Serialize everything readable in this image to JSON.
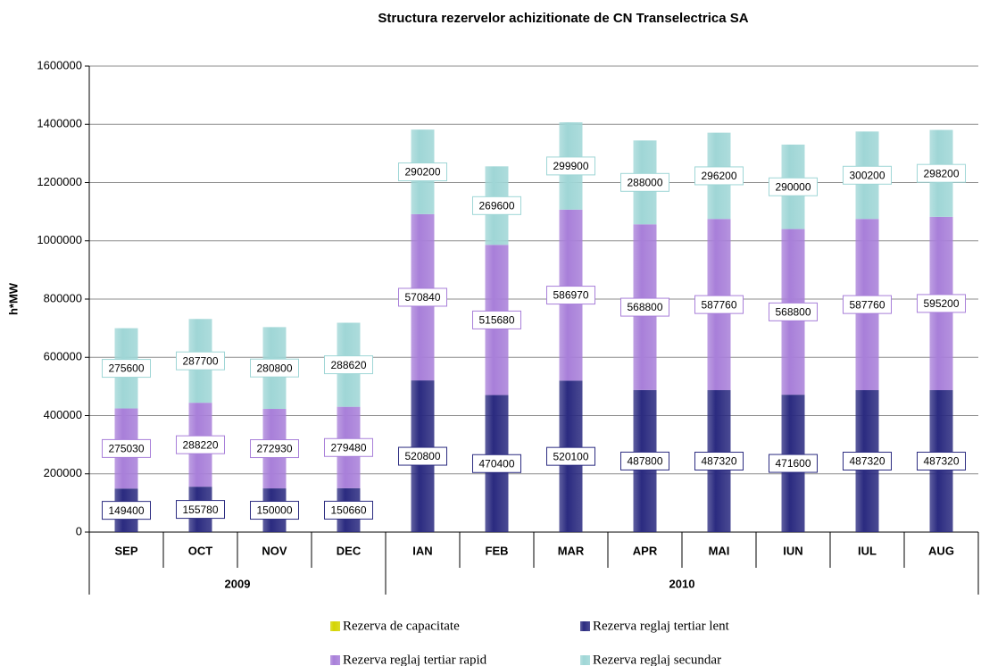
{
  "chart_data": {
    "type": "stacked_bar",
    "title": "Structura rezervelor achizitionate de CN Transelectrica SA",
    "y_label": "h*MW",
    "categories": [
      "SEP",
      "OCT",
      "NOV",
      "DEC",
      "IAN",
      "FEB",
      "MAR",
      "APR",
      "MAI",
      "IUN",
      "IUL",
      "AUG"
    ],
    "groups": [
      {
        "label": "2009",
        "span": 4
      },
      {
        "label": "2010",
        "span": 8
      }
    ],
    "series": [
      {
        "name": "Rezerva de capacitate",
        "color": "#d4d400",
        "values": [
          0,
          0,
          0,
          0,
          0,
          0,
          0,
          0,
          0,
          0,
          0,
          0
        ],
        "labels": false
      },
      {
        "name": "Rezerva reglaj tertiar lent",
        "color": "#2b2b80",
        "values": [
          149400,
          155780,
          150000,
          150660,
          520800,
          470400,
          520100,
          487800,
          487320,
          471600,
          487320,
          487320
        ],
        "labels": true
      },
      {
        "name": "Rezerva reglaj tertiar rapid",
        "color": "#a87fd9",
        "values": [
          275030,
          288220,
          272930,
          279480,
          570840,
          515680,
          586970,
          568800,
          587760,
          568800,
          587760,
          595200
        ],
        "labels": true
      },
      {
        "name": "Rezerva reglaj secundar",
        "color": "#9fd6d6",
        "values": [
          275600,
          287700,
          280800,
          288620,
          290200,
          269600,
          299900,
          288000,
          296200,
          290000,
          300200,
          298200
        ],
        "labels": true
      }
    ],
    "ylim": [
      0,
      1600000
    ],
    "yticks": [
      0,
      200000,
      400000,
      600000,
      800000,
      1000000,
      1200000,
      1400000,
      1600000
    ],
    "grid": true
  }
}
